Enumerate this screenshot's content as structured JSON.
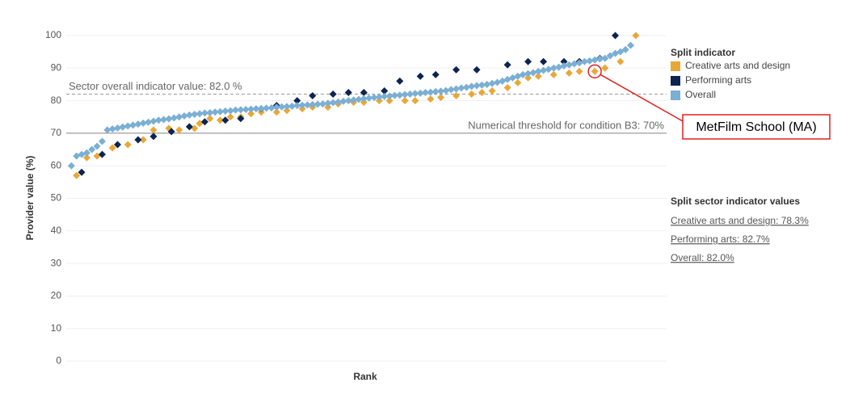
{
  "chart_data": {
    "type": "scatter",
    "x_label": "Rank",
    "y_label": "Provider value (%)",
    "xlim": [
      0,
      117
    ],
    "ylim": [
      0,
      100
    ],
    "yticks": [
      0,
      10,
      20,
      30,
      40,
      50,
      60,
      70,
      80,
      90,
      100
    ],
    "grid": true,
    "legend_title": "Split indicator",
    "series": [
      {
        "name": "Creative arts and design",
        "color": "#e8a838",
        "x": [
          2,
          4,
          6,
          9,
          12,
          15,
          17,
          20,
          22,
          25,
          26,
          28,
          30,
          32,
          34,
          36,
          38,
          41,
          43,
          46,
          48,
          51,
          53,
          56,
          58,
          61,
          63,
          66,
          68,
          71,
          73,
          76,
          79,
          81,
          83,
          86,
          88,
          90,
          92,
          95,
          98,
          100,
          103,
          105,
          108,
          111
        ],
        "values": [
          57,
          62.5,
          63,
          65.5,
          66.5,
          68,
          71,
          71.5,
          71,
          71.5,
          73,
          74.5,
          74,
          75,
          75,
          76,
          76.5,
          76.5,
          77,
          77.5,
          78,
          78,
          79,
          79.5,
          79.5,
          80,
          80,
          80,
          80,
          80.5,
          81,
          81.5,
          82,
          82.5,
          83,
          84,
          85.5,
          87,
          87.5,
          88,
          88.5,
          89,
          89,
          90,
          92,
          100
        ]
      },
      {
        "name": "Performing arts",
        "color": "#0b2450",
        "x": [
          3,
          7,
          10,
          14,
          17,
          20.5,
          24,
          27,
          31,
          34,
          38,
          41,
          45,
          48,
          52,
          55,
          58,
          62,
          65,
          69,
          72,
          76,
          80,
          86,
          90,
          93,
          97,
          100,
          104,
          107
        ],
        "values": [
          58,
          63.5,
          66.5,
          68,
          69,
          70.5,
          72,
          73.5,
          74,
          74.5,
          77.5,
          78.5,
          80,
          81.5,
          82,
          82.5,
          82.5,
          83,
          86,
          87.5,
          88,
          89.5,
          89.5,
          91,
          92,
          92,
          92,
          92,
          93,
          100
        ]
      },
      {
        "name": "Overall",
        "color": "#7bafd4",
        "x": [
          1,
          2,
          3,
          4,
          5,
          6,
          7,
          8,
          9,
          10,
          11,
          12,
          13,
          14,
          15,
          16,
          17,
          18,
          19,
          20,
          21,
          22,
          23,
          24,
          25,
          26,
          27,
          28,
          29,
          30,
          31,
          32,
          33,
          34,
          35,
          36,
          37,
          38,
          39,
          40,
          41,
          42,
          43,
          44,
          45,
          46,
          47,
          48,
          49,
          50,
          51,
          52,
          53,
          54,
          55,
          56,
          57,
          58,
          59,
          60,
          61,
          62,
          63,
          64,
          65,
          66,
          67,
          68,
          69,
          70,
          71,
          72,
          73,
          74,
          75,
          76,
          77,
          78,
          79,
          80,
          81,
          82,
          83,
          84,
          85,
          86,
          87,
          88,
          89,
          90,
          91,
          92,
          93,
          94,
          95,
          96,
          97,
          98,
          99,
          100,
          101,
          102,
          103,
          104,
          105,
          106,
          107,
          108,
          109,
          110
        ],
        "values": [
          60,
          63,
          63.5,
          64,
          65,
          66,
          67.5,
          71,
          71.3,
          71.6,
          71.9,
          72.2,
          72.5,
          72.8,
          73.1,
          73.4,
          73.7,
          74,
          74.2,
          74.4,
          74.7,
          75,
          75.3,
          75.6,
          75.8,
          76,
          76.2,
          76.3,
          76.5,
          76.6,
          76.8,
          76.9,
          77.1,
          77.2,
          77.3,
          77.4,
          77.5,
          77.6,
          77.7,
          77.8,
          78,
          78.1,
          78.2,
          78.3,
          78.5,
          78.6,
          78.7,
          78.8,
          78.9,
          79,
          79.2,
          79.4,
          79.6,
          79.8,
          80,
          80.2,
          80.4,
          80.6,
          80.8,
          81,
          81.1,
          81.3,
          81.4,
          81.6,
          81.7,
          81.9,
          82,
          82.2,
          82.3,
          82.5,
          82.6,
          82.8,
          82.9,
          83.1,
          83.4,
          83.6,
          83.9,
          84.1,
          84.4,
          84.6,
          84.8,
          85,
          85.3,
          85.6,
          86,
          86.5,
          87,
          87.5,
          88,
          88.3,
          88.6,
          89,
          89.3,
          89.6,
          90,
          90.3,
          90.7,
          91,
          91.3,
          91.6,
          92,
          92.2,
          92.5,
          92.8,
          93,
          93.8,
          94.5,
          95,
          95.7,
          97
        ]
      }
    ],
    "reference_lines": [
      {
        "value": 82,
        "label": "Sector overall indicator value: 82.0 %",
        "style": "dashed"
      },
      {
        "value": 70,
        "label": "Numerical threshold for condition B3: 70%",
        "style": "solid"
      }
    ],
    "annotation": {
      "text": "MetFilm School (MA)",
      "x": 103,
      "y": 89
    },
    "sector_values": {
      "title": "Split sector indicator values",
      "items": [
        "Creative arts and design: 78.3%",
        "Performing arts: 82.7%",
        "Overall: 82.0%"
      ]
    }
  }
}
